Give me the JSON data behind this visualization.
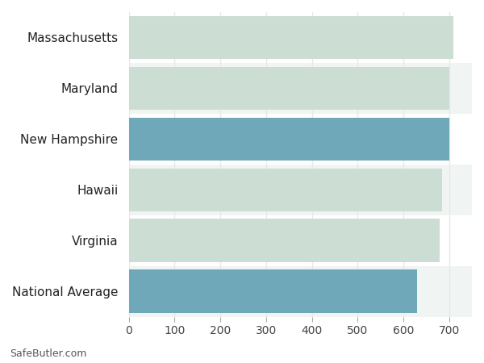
{
  "categories": [
    "National Average",
    "Virginia",
    "Hawaii",
    "New Hampshire",
    "Maryland",
    "Massachusetts"
  ],
  "values": [
    630,
    680,
    685,
    700,
    700,
    710
  ],
  "bar_colors": [
    "#6fa8b8",
    "#ccddd4",
    "#ccddd4",
    "#6fa8b8",
    "#ccddd4",
    "#ccddd4"
  ],
  "xlim": [
    0,
    750
  ],
  "xticks": [
    0,
    100,
    200,
    300,
    400,
    500,
    600,
    700
  ],
  "background_color": "#ffffff",
  "row_bg_odd": "#f0f4f2",
  "row_bg_even": "#ffffff",
  "grid_color": "#e8e8e8",
  "footer_text": "SafeButler.com",
  "tick_fontsize": 10,
  "label_fontsize": 11,
  "bar_height": 0.85
}
